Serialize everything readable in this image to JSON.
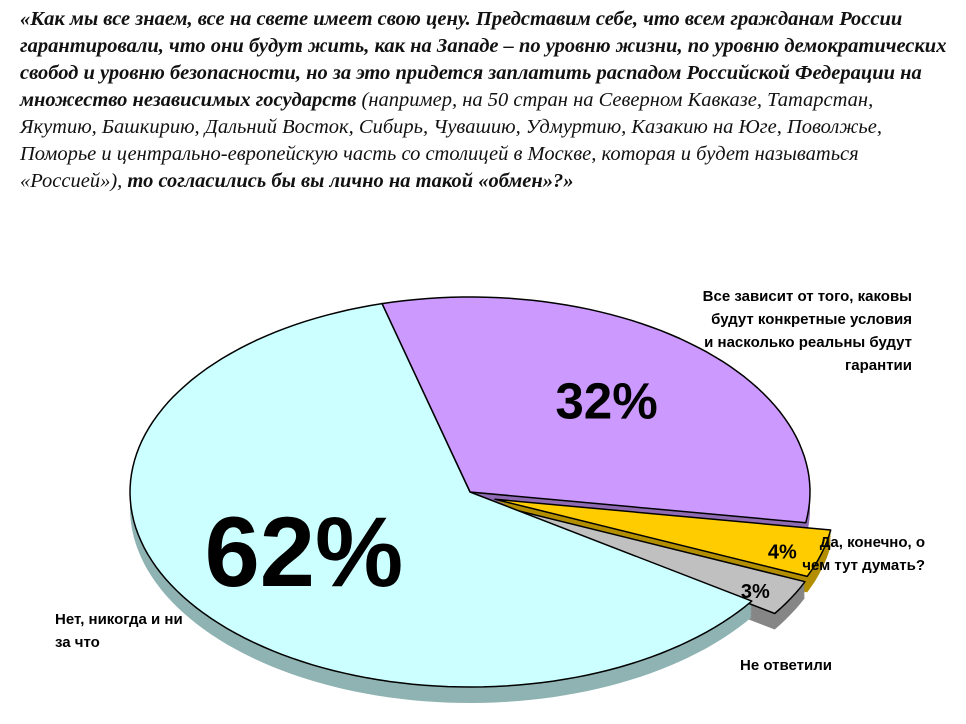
{
  "chart_data": {
    "type": "pie",
    "title_parts": [
      "«Как мы все знаем, все на свете имеет свою цену. Представим себе, что всем гражданам России гарантировали, что они будут жить, как на Западе – по уровню жизни, по уровню демократических свобод и уровню безопасности, но за это придется заплатить распадом Российской Федерации на множество независимых государств",
      "(например, на 50 стран на Северном Кавказе, Татарстан, Якутию, Башкирию, Дальний Восток, Сибирь, Чувашию, Удмуртию, Казакию на Юге, Поволжье, Поморье и центрально-европейскую часть со столицей в Москве, которая и будет называться «Россией»),",
      "то согласились бы вы лично на такой «обмен»?»"
    ],
    "categories": [
      "Все зависит от того, каковы будут конкретные условия и насколько реальны будут гарантии",
      "Да, конечно, о чем тут думать?",
      "Не ответили",
      "Нет, никогда и ни за что"
    ],
    "values": [
      32,
      4,
      3,
      62
    ],
    "value_labels": [
      "32%",
      "4%",
      "3%",
      "62%"
    ],
    "colors": [
      "#cc99ff",
      "#ffcc00",
      "#c0c0c0",
      "#ccffff"
    ],
    "exploded": [
      false,
      true,
      true,
      false
    ]
  }
}
